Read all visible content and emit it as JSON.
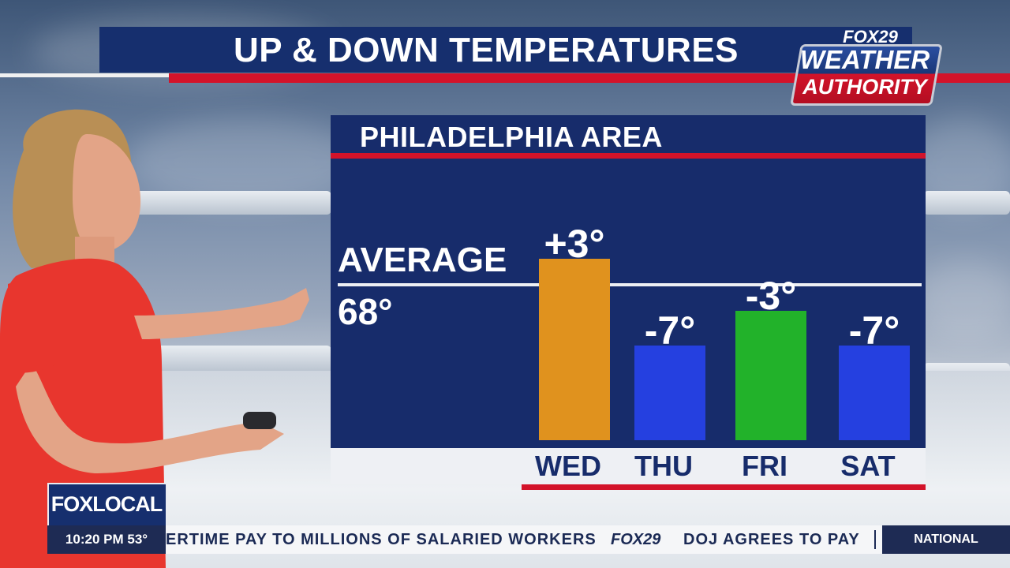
{
  "header": {
    "title": "UP & DOWN TEMPERATURES"
  },
  "logo": {
    "network": "FOX29",
    "line1": "WEATHER",
    "line2": "AUTHORITY"
  },
  "chart_data": {
    "type": "bar",
    "title": "PHILADELPHIA AREA",
    "categories": [
      "WED",
      "THU",
      "FRI",
      "SAT"
    ],
    "values": [
      3,
      -7,
      -3,
      -7
    ],
    "value_labels": [
      "+3°",
      "-7°",
      "-3°",
      "-7°"
    ],
    "colors": [
      "#e0921e",
      "#2540e0",
      "#22b22a",
      "#2540e0"
    ],
    "reference_line": {
      "label": "AVERAGE",
      "value_label": "68°",
      "value": 68
    },
    "xlabel": "",
    "ylabel": "",
    "grid": false,
    "legend": "none"
  },
  "ticker": {
    "time": "10:20 PM",
    "temp": "53°",
    "headline": "ERTIME PAY TO MILLIONS OF SALARIED WORKERS",
    "brand": "FOX29",
    "headline2": "DOJ AGREES TO PAY",
    "section": "NATIONAL"
  },
  "bug": {
    "label": "FOXLOCAL"
  },
  "icons": {
    "presenter": "presenter-figure"
  }
}
